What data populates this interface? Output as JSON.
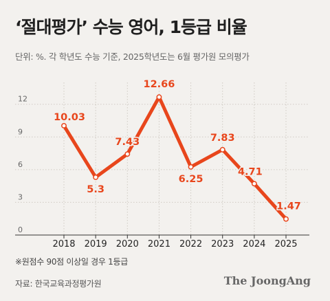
{
  "header": {
    "title": "‘절대평가’ 수능 영어, 1등급 비율",
    "subtitle": "단위: %. 각 학년도 수능 기준, 2025학년도는 6월 평가원 모의평가"
  },
  "footer": {
    "footnote": "※원점수 90점 이상일 경우 1등급",
    "source": "자료: 한국교육과정평가원",
    "brand": "The JoongAng"
  },
  "colors": {
    "line": "#e8461c",
    "label": "#e8461c",
    "grid": "#cfcac3",
    "axis": "#333333"
  },
  "chart_data": {
    "type": "line",
    "title": "‘절대평가’ 수능 영어, 1등급 비율",
    "categories": [
      "2018",
      "2019",
      "2020",
      "2021",
      "2022",
      "2023",
      "2024",
      "2025"
    ],
    "values": [
      10.03,
      5.3,
      7.43,
      12.66,
      6.25,
      7.83,
      4.71,
      1.47
    ],
    "data_labels": [
      "10.03",
      "5.3",
      "7.43",
      "12.66",
      "6.25",
      "7.83",
      "4.71",
      "1.47"
    ],
    "y_ticks": [
      0,
      3,
      6,
      9,
      12
    ],
    "ylim": [
      0,
      14
    ],
    "xlabel": "",
    "ylabel": "",
    "grid": true
  }
}
